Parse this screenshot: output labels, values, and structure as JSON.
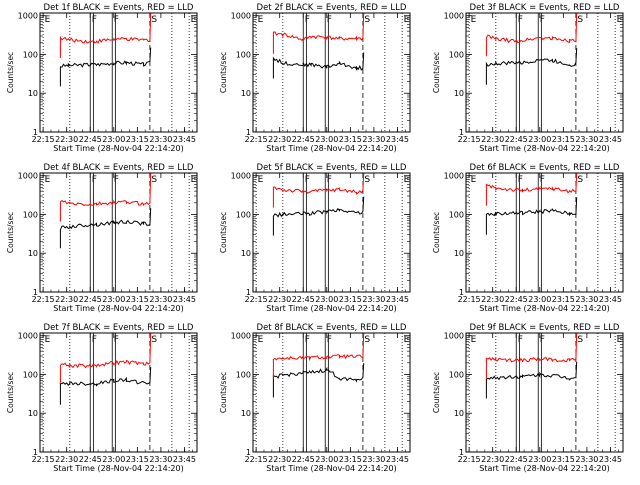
{
  "figure": {
    "ylabel": "Counts/sec",
    "xlabel": "Start Time (28-Nov-04 22:14:20)"
  },
  "shared": {
    "y_ticks": [
      "1",
      "10",
      "100",
      "1000"
    ],
    "x_ticks": [
      "22:15",
      "22:30",
      "22:45",
      "23:00",
      "23:15",
      "23:30",
      "23:45"
    ],
    "ylim": [
      1,
      1000
    ],
    "y_scale": "log",
    "markers": [
      {
        "label": "E",
        "time": "22:15",
        "style": "dotted"
      },
      {
        "label": "",
        "time": "22:32",
        "style": "dotted"
      },
      {
        "label": "F",
        "time": "22:45",
        "style": "solid"
      },
      {
        "label": "",
        "time": "22:47",
        "style": "solid"
      },
      {
        "label": "F",
        "time": "22:59",
        "style": "solid"
      },
      {
        "label": "",
        "time": "23:01",
        "style": "solid"
      },
      {
        "label": "S",
        "time": "23:23",
        "style": "dashed"
      },
      {
        "label": "",
        "time": "23:37",
        "style": "dotted"
      },
      {
        "label": "E",
        "time": "23:48",
        "style": "dotted"
      }
    ],
    "colors": {
      "events": "#000000",
      "lld": "#ff0000"
    }
  },
  "chart_data": [
    {
      "type": "line",
      "title": "Det 1f BLACK = Events, RED = LLD",
      "x": [
        "22:26",
        "22:31",
        "22:45",
        "22:49",
        "23:00",
        "23:08",
        "23:19",
        "23:23"
      ],
      "series": [
        {
          "name": "Events",
          "color": "#000000",
          "values": [
            50,
            52,
            55,
            55,
            60,
            62,
            55,
            60
          ]
        },
        {
          "name": "LLD",
          "color": "#ff0000",
          "values": [
            270,
            240,
            215,
            220,
            245,
            250,
            235,
            240
          ]
        }
      ]
    },
    {
      "type": "line",
      "title": "Det 2f BLACK = Events, RED = LLD",
      "x": [
        "22:26",
        "22:32",
        "22:45",
        "22:50",
        "23:00",
        "23:08",
        "23:19",
        "23:23"
      ],
      "series": [
        {
          "name": "Events",
          "color": "#000000",
          "values": [
            80,
            60,
            55,
            55,
            48,
            58,
            45,
            45
          ]
        },
        {
          "name": "LLD",
          "color": "#ff0000",
          "values": [
            350,
            330,
            240,
            290,
            280,
            255,
            260,
            260
          ]
        }
      ]
    },
    {
      "type": "line",
      "title": "Det 3f BLACK = Events, RED = LLD",
      "x": [
        "22:26",
        "22:32",
        "22:45",
        "22:49",
        "23:00",
        "23:08",
        "23:19",
        "23:23"
      ],
      "series": [
        {
          "name": "Events",
          "color": "#000000",
          "values": [
            55,
            58,
            62,
            60,
            75,
            70,
            55,
            58
          ]
        },
        {
          "name": "LLD",
          "color": "#ff0000",
          "values": [
            300,
            250,
            220,
            230,
            270,
            260,
            230,
            240
          ]
        }
      ]
    },
    {
      "type": "line",
      "title": "Det 4f BLACK = Events, RED = LLD",
      "x": [
        "22:26",
        "22:32",
        "22:45",
        "22:49",
        "23:00",
        "23:08",
        "23:19",
        "23:23"
      ],
      "series": [
        {
          "name": "Events",
          "color": "#000000",
          "values": [
            45,
            48,
            55,
            55,
            62,
            65,
            58,
            58
          ]
        },
        {
          "name": "LLD",
          "color": "#ff0000",
          "values": [
            220,
            190,
            180,
            185,
            200,
            210,
            190,
            195
          ]
        }
      ]
    },
    {
      "type": "line",
      "title": "Det 5f BLACK = Events, RED = LLD",
      "x": [
        "22:26",
        "22:32",
        "22:45",
        "22:49",
        "23:00",
        "23:08",
        "23:19",
        "23:23"
      ],
      "series": [
        {
          "name": "Events",
          "color": "#000000",
          "values": [
            95,
            100,
            105,
            105,
            120,
            130,
            110,
            115
          ]
        },
        {
          "name": "LLD",
          "color": "#ff0000",
          "values": [
            500,
            430,
            390,
            395,
            420,
            440,
            380,
            385
          ]
        }
      ]
    },
    {
      "type": "line",
      "title": "Det 6f BLACK = Events, RED = LLD",
      "x": [
        "22:26",
        "22:32",
        "22:45",
        "22:49",
        "23:00",
        "23:08",
        "23:19",
        "23:23"
      ],
      "series": [
        {
          "name": "Events",
          "color": "#000000",
          "values": [
            100,
            105,
            110,
            110,
            120,
            125,
            105,
            110
          ]
        },
        {
          "name": "LLD",
          "color": "#ff0000",
          "values": [
            560,
            480,
            430,
            420,
            450,
            470,
            400,
            420
          ]
        }
      ]
    },
    {
      "type": "line",
      "title": "Det 7f BLACK = Events, RED = LLD",
      "x": [
        "22:26",
        "22:32",
        "22:45",
        "22:49",
        "23:00",
        "23:08",
        "23:19",
        "23:23"
      ],
      "series": [
        {
          "name": "Events",
          "color": "#000000",
          "values": [
            55,
            60,
            58,
            58,
            70,
            72,
            60,
            62
          ]
        },
        {
          "name": "LLD",
          "color": "#ff0000",
          "values": [
            190,
            170,
            170,
            175,
            200,
            210,
            190,
            190
          ]
        }
      ]
    },
    {
      "type": "line",
      "title": "Det 8f BLACK = Events, RED = LLD",
      "x": [
        "22:26",
        "22:32",
        "22:45",
        "22:49",
        "23:00",
        "23:08",
        "23:19",
        "23:23"
      ],
      "series": [
        {
          "name": "Events",
          "color": "#000000",
          "values": [
            85,
            95,
            110,
            110,
            130,
            80,
            75,
            78
          ]
        },
        {
          "name": "LLD",
          "color": "#ff0000",
          "values": [
            260,
            260,
            270,
            270,
            280,
            295,
            285,
            290
          ]
        }
      ]
    },
    {
      "type": "line",
      "title": "Det 9f BLACK = Events, RED = LLD",
      "x": [
        "22:26",
        "22:32",
        "22:45",
        "22:49",
        "23:00",
        "23:08",
        "23:19",
        "23:23"
      ],
      "series": [
        {
          "name": "Events",
          "color": "#000000",
          "values": [
            80,
            82,
            90,
            88,
            100,
            95,
            82,
            85
          ]
        },
        {
          "name": "LLD",
          "color": "#ff0000",
          "values": [
            260,
            240,
            230,
            235,
            250,
            245,
            230,
            240
          ]
        }
      ]
    }
  ]
}
